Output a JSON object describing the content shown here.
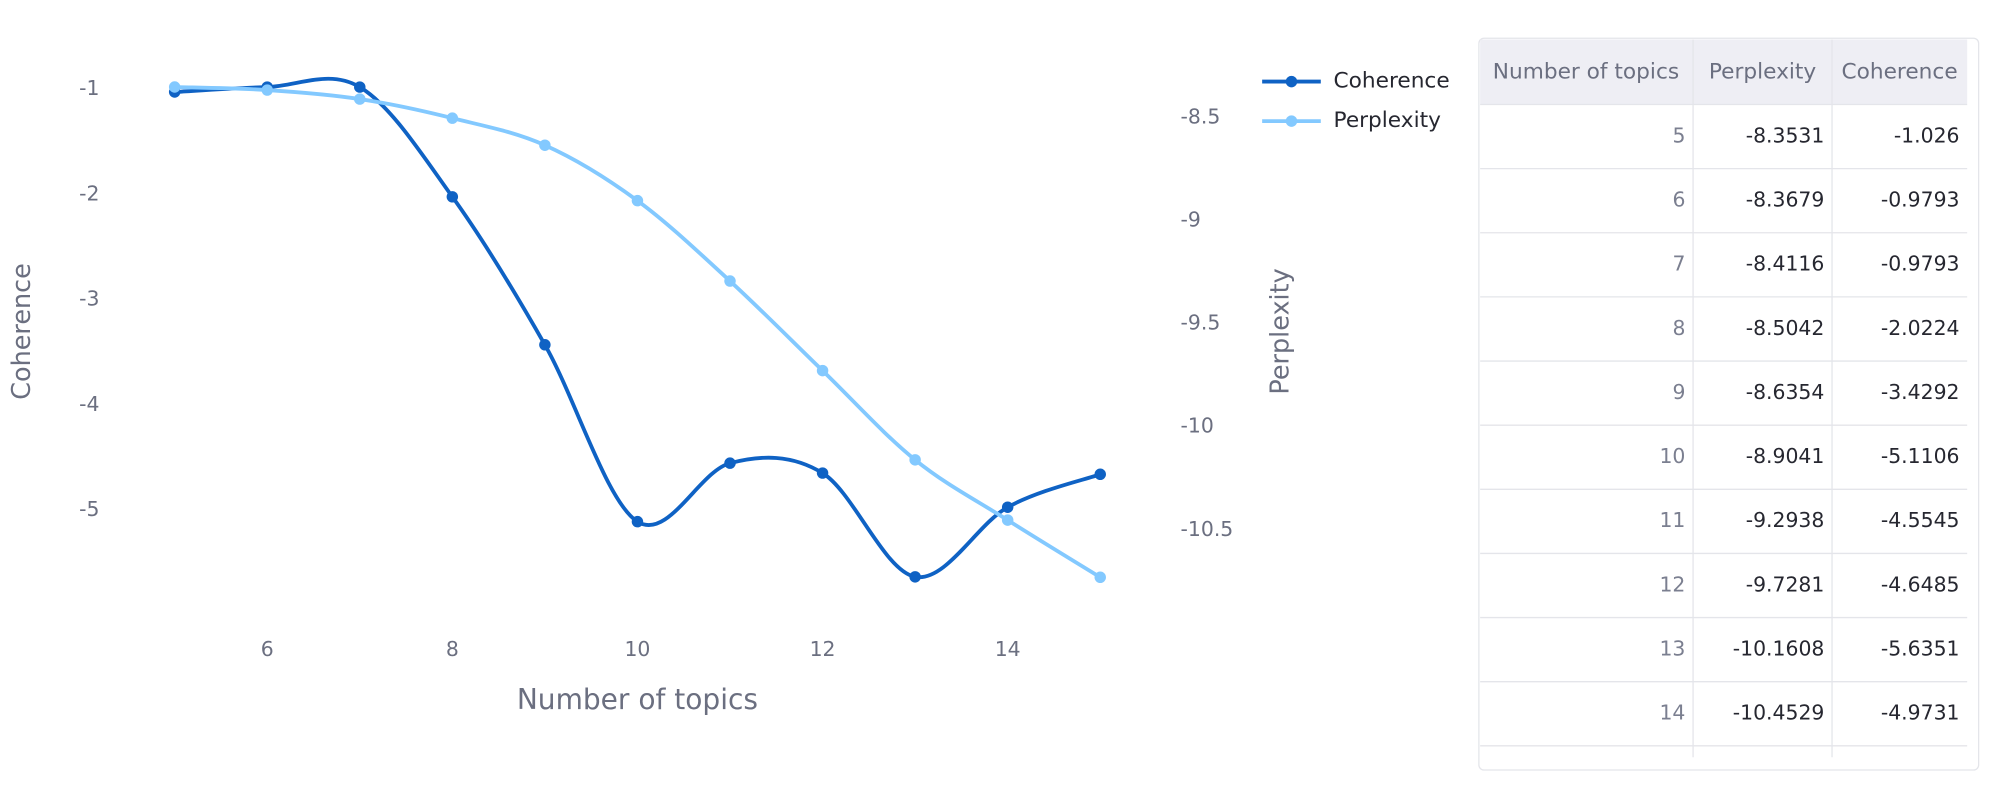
{
  "chart_data": {
    "type": "line",
    "x": [
      5,
      6,
      7,
      8,
      9,
      10,
      11,
      12,
      13,
      14,
      15
    ],
    "xlabel": "Number of topics",
    "ylabel": "Coherence",
    "y2label": "Perplexity",
    "xlim": [
      5,
      15
    ],
    "xticks": [
      6,
      8,
      10,
      12,
      14
    ],
    "ylim": [
      -6.09,
      -0.6
    ],
    "yticks": [
      -1,
      -2,
      -3,
      -4,
      -5
    ],
    "y2lim": [
      -10.96,
      -8.16
    ],
    "y2ticks": [
      -8.5,
      -9,
      -9.5,
      -10,
      -10.5
    ],
    "grid": false,
    "legend": "top-right",
    "smooth": true,
    "series": [
      {
        "name": "Coherence",
        "color": "#0f62c4",
        "values": [
          -1.026,
          -0.9793,
          -0.9793,
          -2.0224,
          -3.4292,
          -5.1106,
          -4.5545,
          -4.6485,
          -5.6351,
          -4.9731,
          -4.66
        ]
      },
      {
        "name": "Perplexity",
        "color": "#83c9ff",
        "axis": "y2",
        "values": [
          -8.3531,
          -8.3679,
          -8.4116,
          -8.5042,
          -8.6354,
          -8.9041,
          -9.2938,
          -9.7281,
          -10.1608,
          -10.4529,
          -10.73
        ]
      }
    ]
  },
  "table": {
    "columns": [
      "Number of topics",
      "Perplexity",
      "Coherence"
    ],
    "rows": [
      [
        5,
        -8.3531,
        -1.026
      ],
      [
        6,
        -8.3679,
        -0.9793
      ],
      [
        7,
        -8.4116,
        -0.9793
      ],
      [
        8,
        -8.5042,
        -2.0224
      ],
      [
        9,
        -8.6354,
        -3.4292
      ],
      [
        10,
        -8.9041,
        -5.1106
      ],
      [
        11,
        -9.2938,
        -4.5545
      ],
      [
        12,
        -9.7281,
        -4.6485
      ],
      [
        13,
        -10.1608,
        -5.6351
      ],
      [
        14,
        -10.4529,
        -4.9731
      ]
    ]
  }
}
